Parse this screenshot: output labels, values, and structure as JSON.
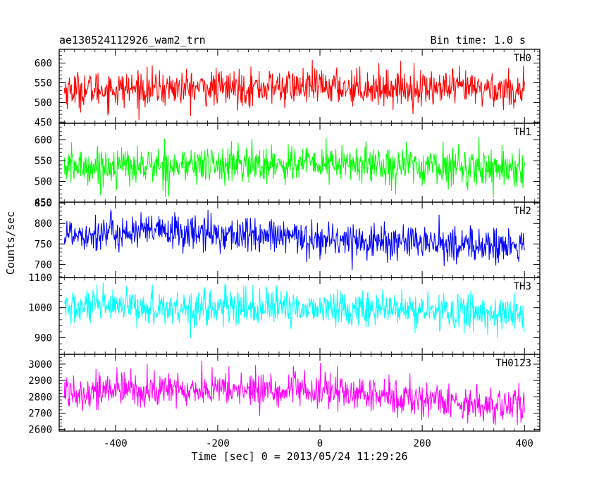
{
  "chart_data": {
    "type": "line",
    "title": "ae130524112926_wam2_trn",
    "bin_time": "Bin time: 1.0 s",
    "xlabel": "Time [sec] 0 = 2013/05/24 11:29:26",
    "ylabel": "Counts/sec",
    "xlim": [
      -510,
      430
    ],
    "x_ticks": [
      -400,
      -200,
      0,
      200,
      400
    ],
    "series": [
      {
        "name": "TH0",
        "color": "#ff0000",
        "ylim": [
          447,
          635
        ],
        "y_ticks": [
          450,
          500,
          550,
          600
        ],
        "trend": [
          [
            -500,
            532
          ],
          [
            0,
            540
          ],
          [
            400,
            532
          ]
        ],
        "noise_sd": 23,
        "range": [
          455,
          635
        ]
      },
      {
        "name": "TH1",
        "color": "#00ff00",
        "ylim": [
          450,
          640
        ],
        "y_ticks": [
          450,
          500,
          550,
          600
        ],
        "trend": [
          [
            -500,
            535
          ],
          [
            0,
            543
          ],
          [
            400,
            532
          ]
        ],
        "noise_sd": 23,
        "range": [
          460,
          632
        ]
      },
      {
        "name": "TH2",
        "color": "#0000ff",
        "ylim": [
          668,
          852
        ],
        "y_ticks": [
          700,
          750,
          800,
          850
        ],
        "trend": [
          [
            -500,
            775
          ],
          [
            -300,
            780
          ],
          [
            0,
            762
          ],
          [
            400,
            742
          ]
        ],
        "noise_sd": 22,
        "range": [
          680,
          850
        ]
      },
      {
        "name": "TH3",
        "color": "#00ffff",
        "ylim": [
          845,
          1100
        ],
        "y_ticks": [
          900,
          1000,
          1100
        ],
        "trend": [
          [
            -500,
            1000
          ],
          [
            0,
            1000
          ],
          [
            400,
            978
          ]
        ],
        "noise_sd": 30,
        "range": [
          850,
          1100
        ]
      },
      {
        "name": "TH0123",
        "color": "#ff00ff",
        "ylim": [
          2590,
          3060
        ],
        "y_ticks": [
          2600,
          2700,
          2800,
          2900,
          3000
        ],
        "trend": [
          [
            -500,
            2835
          ],
          [
            -200,
            2845
          ],
          [
            0,
            2835
          ],
          [
            400,
            2735
          ]
        ],
        "noise_sd": 55,
        "range": [
          2590,
          3040
        ]
      }
    ]
  }
}
